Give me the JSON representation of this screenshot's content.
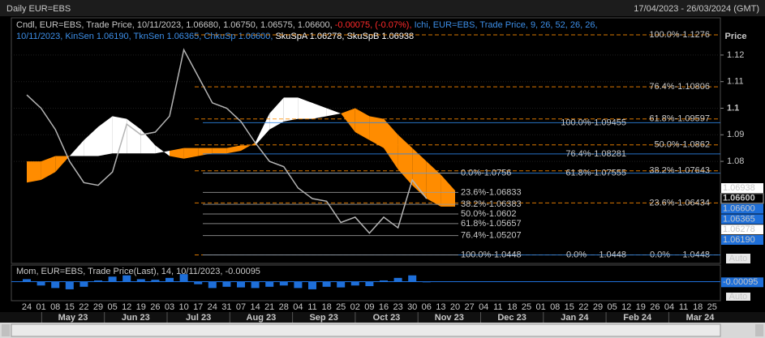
{
  "chart_data": {
    "type": "line",
    "title": "Daily EUR=EBS",
    "subtitle": "17/04/2023 - 26/03/2024 (GMT)",
    "legend_lines": [
      [
        {
          "text": "Cndl, EUR=EBS, Trade Price, 10/11/2023, 1.06680, 1.06750, 1.06575, 1.06600,",
          "color": "#c8c8c8"
        },
        {
          "text": "-0.00075, (-0.07%),",
          "color": "#ff2a2a"
        },
        {
          "text": "Ichi, EUR=EBS, Trade Price, 9, 26, 52, 26, 26,",
          "color": "#3d8fe8"
        }
      ],
      [
        {
          "text": "10/11/2023, KinSen 1.06190, TknSen 1.06365, ChkuSp 1.06600,",
          "color": "#3d8fe8"
        },
        {
          "text": "SkuSpA 1.06278, SkuSpB 1.06938",
          "color": "#ffffff"
        }
      ]
    ],
    "y_axis_label": "Price",
    "categories": [
      "24",
      "01",
      "08",
      "15",
      "22",
      "29",
      "05",
      "12",
      "19",
      "26",
      "03",
      "10",
      "17",
      "24",
      "31",
      "07",
      "14",
      "21",
      "28",
      "04",
      "11",
      "18",
      "25",
      "02",
      "09",
      "16",
      "23",
      "30",
      "06",
      "13",
      "20",
      "27",
      "04",
      "11",
      "18",
      "25",
      "01",
      "08",
      "15",
      "22",
      "29",
      "05",
      "12",
      "19",
      "26",
      "04",
      "11",
      "18",
      "25"
    ],
    "months": [
      "May 23",
      "Jun 23",
      "Jul 23",
      "Aug 23",
      "Sep 23",
      "Oct 23",
      "Nov 23",
      "Dec 23",
      "Jan 24",
      "Feb 24",
      "Mar 24"
    ],
    "series": [
      {
        "name": "Cndl",
        "color": "#b4b4b4",
        "values": [
          1.105,
          1.1,
          1.092,
          1.08,
          1.072,
          1.071,
          1.076,
          1.094,
          1.09,
          1.091,
          1.097,
          1.122,
          1.112,
          1.102,
          1.1,
          1.095,
          1.087,
          1.08,
          1.078,
          1.07,
          1.066,
          1.065,
          1.057,
          1.059,
          1.053,
          1.059,
          1.055,
          1.073,
          1.066,
          null,
          null,
          null,
          null,
          null,
          null,
          null,
          null,
          null,
          null,
          null,
          null,
          null,
          null,
          null,
          null,
          null,
          null,
          null,
          null
        ]
      },
      {
        "name": "SkuSpA",
        "color": "#ffffff",
        "values": [
          1.072,
          1.073,
          1.076,
          1.082,
          1.088,
          1.093,
          1.097,
          1.096,
          1.092,
          1.086,
          1.082,
          1.081,
          1.082,
          1.083,
          1.083,
          1.084,
          1.087,
          1.098,
          1.104,
          1.104,
          1.102,
          1.1,
          1.098,
          1.091,
          1.088,
          1.085,
          1.077,
          1.071,
          1.066,
          1.063,
          1.063,
          null,
          null,
          null,
          null,
          null,
          null,
          null,
          null,
          null,
          null,
          null,
          null,
          null,
          null,
          null,
          null,
          null,
          null
        ]
      },
      {
        "name": "SkuSpB",
        "color": "#ff8c00",
        "values": [
          1.08,
          1.08,
          1.082,
          1.082,
          1.082,
          1.082,
          1.083,
          1.083,
          1.083,
          1.083,
          1.084,
          1.085,
          1.085,
          1.085,
          1.085,
          1.086,
          1.086,
          1.092,
          1.095,
          1.096,
          1.096,
          1.097,
          1.098,
          1.1,
          1.097,
          1.096,
          1.09,
          1.085,
          1.08,
          1.075,
          1.069,
          null,
          null,
          null,
          null,
          null,
          null,
          null,
          null,
          null,
          null,
          null,
          null,
          null,
          null,
          null,
          null,
          null,
          null
        ]
      }
    ],
    "ylim": [
      1.0416,
      1.134
    ],
    "yticks": [
      1.08,
      1.09,
      1.1,
      1.11,
      1.12
    ],
    "grid": true,
    "fib_sets": [
      {
        "color": "#ff8c00",
        "levels": [
          {
            "value": 1.1276,
            "label": "100.0%-1.1276"
          },
          {
            "value": 1.10806,
            "label": "76.4%-1.10806"
          },
          {
            "value": 1.09597,
            "label": "61.8%-1.09597"
          },
          {
            "value": 1.0862,
            "label": "50.0%-1.0862"
          },
          {
            "value": 1.07643,
            "label": "38.2%-1.07643"
          },
          {
            "value": 1.06434,
            "label": "23.6%-1.06434"
          },
          {
            "value": 1.0448,
            "label": "0.0%     1.0448"
          }
        ]
      },
      {
        "color": "#2f86e8",
        "levels": [
          {
            "value": 1.09455,
            "label": "100.0%-1.09455"
          },
          {
            "value": 1.08281,
            "label": "76.4%-1.08281"
          },
          {
            "value": 1.07555,
            "label": "61.8%-1.07555"
          },
          {
            "value": 1.0448,
            "label": "0.0%     1.0448"
          }
        ]
      },
      {
        "color": "#9a9a9a",
        "levels": [
          {
            "value": 1.0756,
            "label": "0.0%-1.0756"
          },
          {
            "value": 1.06833,
            "label": "23.6%-1.06833"
          },
          {
            "value": 1.06383,
            "label": "38.2%-1.06383"
          },
          {
            "value": 1.0602,
            "label": "50.0%-1.0602"
          },
          {
            "value": 1.05657,
            "label": "61.8%-1.05657"
          },
          {
            "value": 1.05207,
            "label": "76.4%-1.05207"
          },
          {
            "value": 1.0448,
            "label": "100.0%-1.0448"
          }
        ]
      }
    ],
    "value_boxes": [
      {
        "value": 1.06938,
        "label": "1.06938",
        "color": "#ffffff"
      },
      {
        "value": 1.066,
        "label": "1.06600",
        "color": "#000000"
      },
      {
        "value": 1.066,
        "label": "1.06600",
        "color": "#1e6fd9"
      },
      {
        "value": 1.06365,
        "label": "1.06365",
        "color": "#1e6fd9"
      },
      {
        "value": 1.06278,
        "label": "1.06278",
        "color": "#ffffff"
      },
      {
        "value": 1.0619,
        "label": "1.06190",
        "color": "#1e6fd9"
      }
    ],
    "momentum": {
      "title": "Mom, EUR=EBS, Trade Price(Last), 14, 10/11/2023, -0.00095",
      "color": "#1e6fd9",
      "ylim": [
        -0.03,
        0.025
      ],
      "values": [
        0.004,
        -0.006,
        -0.01,
        -0.012,
        -0.008,
        0.002,
        0.008,
        0.01,
        0.004,
        0.003,
        0.006,
        0.012,
        -0.004,
        -0.01,
        -0.008,
        -0.009,
        -0.01,
        -0.008,
        -0.006,
        -0.01,
        -0.012,
        -0.008,
        -0.009,
        -0.006,
        -0.007,
        0.002,
        0.006,
        0.01,
        -0.00095
      ],
      "last": {
        "value": -0.00095,
        "label": "-0.00095"
      }
    },
    "auto_button": "Auto"
  }
}
